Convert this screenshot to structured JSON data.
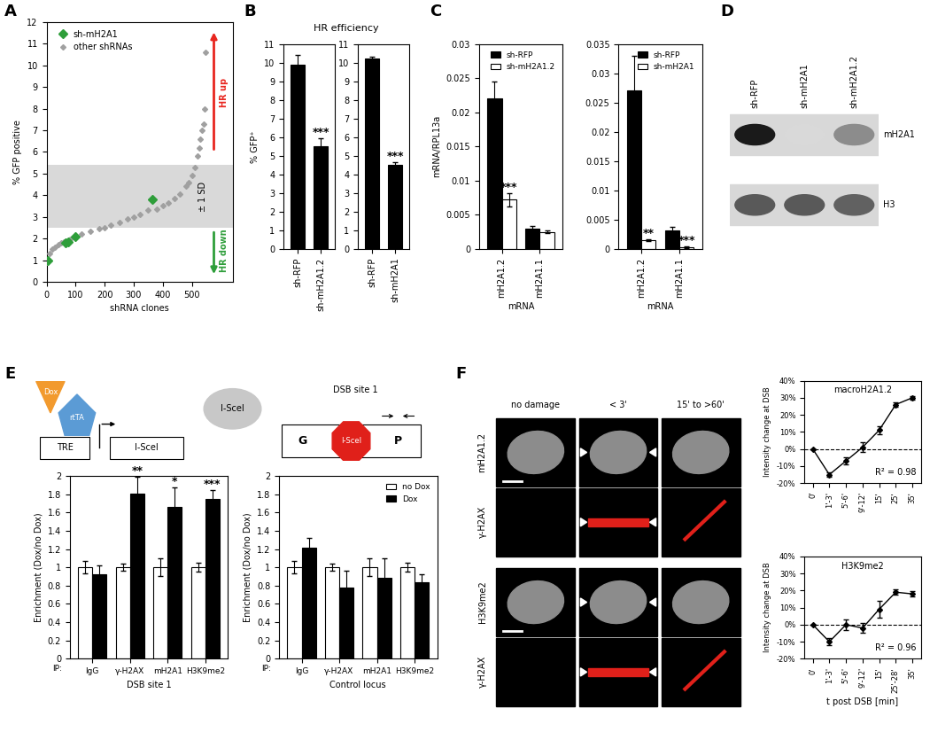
{
  "panel_labels": [
    "A",
    "B",
    "C",
    "D",
    "E",
    "F"
  ],
  "chart_data": [
    {
      "type": "scatter",
      "x_label": "shRNA clones",
      "y_label": "% GFP positive",
      "xlim": [
        0,
        640
      ],
      "xticks": [
        0,
        100,
        200,
        300,
        400,
        500
      ],
      "ylim": [
        0,
        12
      ],
      "yticks": [
        0,
        1,
        2,
        3,
        4,
        5,
        6,
        7,
        8,
        9,
        10,
        11,
        12
      ],
      "legend": "upper left",
      "series": [
        {
          "name": "sh-mH2A1",
          "color": "#2e9e3a",
          "marker": "diamond",
          "x": [
            5,
            65,
            75,
            100,
            365
          ],
          "values": [
            1.0,
            1.8,
            1.85,
            2.1,
            3.8
          ]
        },
        {
          "name": "other shRNAs",
          "color": "#a0a0a0",
          "marker": "diamond",
          "x": [
            0,
            10,
            20,
            30,
            40,
            50,
            60,
            80,
            100,
            120,
            150,
            180,
            200,
            220,
            250,
            280,
            300,
            320,
            350,
            380,
            400,
            420,
            440,
            460,
            480,
            490,
            500,
            510,
            520,
            525,
            530,
            535,
            540,
            545,
            548
          ],
          "values": [
            0.9,
            1.3,
            1.5,
            1.6,
            1.7,
            1.8,
            1.85,
            1.95,
            2.1,
            2.2,
            2.35,
            2.45,
            2.5,
            2.6,
            2.75,
            2.9,
            3.0,
            3.1,
            3.3,
            3.35,
            3.5,
            3.65,
            3.85,
            4.05,
            4.4,
            4.6,
            4.9,
            5.3,
            5.8,
            6.2,
            6.6,
            7.0,
            7.3,
            8.0,
            10.6
          ]
        }
      ],
      "sd_band": {
        "label": "± 1 SD",
        "values": [
          2.5,
          5.4
        ]
      },
      "annotations": [
        {
          "text": "HR up",
          "color": "#e8261f"
        },
        {
          "text": "HR down",
          "color": "#2e9e3a"
        }
      ]
    },
    {
      "type": "bar",
      "title": "HR efficiency",
      "y_label": "% GFP⁺",
      "categories": [
        "sh-RFP",
        "sh-mH2A1.2"
      ],
      "values": [
        9.9,
        5.5
      ],
      "errors": [
        0.5,
        0.45
      ],
      "significance": [
        null,
        "***"
      ],
      "color": "#000000",
      "ylim": [
        0,
        11
      ],
      "yticks": [
        0,
        1,
        2,
        3,
        4,
        5,
        6,
        7,
        8,
        9,
        10,
        11
      ]
    },
    {
      "type": "bar",
      "categories": [
        "sh-RFP",
        "sh-mH2A1"
      ],
      "values": [
        10.2,
        4.5
      ],
      "errors": [
        0.1,
        0.15
      ],
      "significance": [
        null,
        "***"
      ],
      "color": "#000000",
      "ylim": [
        0,
        11
      ],
      "yticks": [
        0,
        1,
        2,
        3,
        4,
        5,
        6,
        7,
        8,
        9,
        10,
        11
      ]
    },
    {
      "type": "bar",
      "y_label": "mRNA/RPL13a",
      "x_label": "mRNA",
      "categories": [
        "mH2A1.2",
        "mH2A1.1"
      ],
      "legend": "upper right",
      "ylim": [
        0,
        0.03
      ],
      "yticks": [
        0,
        0.005,
        0.01,
        0.015,
        0.02,
        0.025,
        0.03
      ],
      "series": [
        {
          "name": "sh-RFP",
          "color": "#000000",
          "values": [
            0.022,
            0.0029
          ],
          "errors": [
            0.0025,
            0.0004
          ]
        },
        {
          "name": "sh-mH2A1.2",
          "color": "#ffffff",
          "values": [
            0.0072,
            0.0025
          ],
          "errors": [
            0.001,
            0.0002
          ],
          "significance": [
            "***",
            null
          ]
        }
      ]
    },
    {
      "type": "bar",
      "x_label": "mRNA",
      "categories": [
        "mH2A1.2",
        "mH2A1.1"
      ],
      "legend": "upper right",
      "ylim": [
        0,
        0.035
      ],
      "yticks": [
        0,
        0.005,
        0.01,
        0.015,
        0.02,
        0.025,
        0.03,
        0.035
      ],
      "series": [
        {
          "name": "sh-RFP",
          "color": "#000000",
          "values": [
            0.027,
            0.0032
          ],
          "errors": [
            0.006,
            0.0005
          ]
        },
        {
          "name": "sh-mH2A1",
          "color": "#ffffff",
          "values": [
            0.0015,
            0.0003
          ],
          "errors": [
            0.0002,
            0.0001
          ],
          "significance": [
            "**",
            "***"
          ]
        }
      ]
    },
    {
      "type": "bar",
      "y_label": "Enrichment (Dox/no Dox)",
      "x_label": "DSB site 1",
      "category_axis_title": "IP:",
      "categories": [
        "IgG",
        "γ-H2AX",
        "mH2A1",
        "H3K9me2"
      ],
      "ylim": [
        0,
        2
      ],
      "yticks": [
        0,
        0.2,
        0.4,
        0.6,
        0.8,
        1,
        1.2,
        1.4,
        1.6,
        1.8,
        2
      ],
      "series": [
        {
          "name": "no Dox",
          "color": "#ffffff",
          "values": [
            1,
            1,
            1,
            1
          ],
          "errors": [
            0.07,
            0.04,
            0.1,
            0.05
          ]
        },
        {
          "name": "Dox",
          "color": "#000000",
          "values": [
            0.92,
            1.81,
            1.66,
            1.75
          ],
          "errors": [
            0.1,
            0.18,
            0.21,
            0.09
          ],
          "significance": [
            null,
            "**",
            "*",
            "***"
          ]
        }
      ]
    },
    {
      "type": "bar",
      "y_label": "Enrichment (Dox/no Dox)",
      "x_label": "Control locus",
      "category_axis_title": "IP:",
      "categories": [
        "IgG",
        "γ-H2AX",
        "mH2A1",
        "H3K9me2"
      ],
      "legend": "upper right",
      "ylim": [
        0,
        2
      ],
      "yticks": [
        0,
        0.2,
        0.4,
        0.6,
        0.8,
        1,
        1.2,
        1.4,
        1.6,
        1.8,
        2
      ],
      "series": [
        {
          "name": "no Dox",
          "color": "#ffffff",
          "values": [
            1,
            1,
            1,
            1
          ],
          "errors": [
            0.07,
            0.04,
            0.1,
            0.05
          ]
        },
        {
          "name": "Dox",
          "color": "#000000",
          "values": [
            1.21,
            0.78,
            0.89,
            0.84
          ],
          "errors": [
            0.11,
            0.18,
            0.21,
            0.08
          ]
        }
      ]
    },
    {
      "type": "line",
      "title": "macroH2A1.2",
      "y_label": "Intensity change at DSB",
      "categories": [
        "0'",
        "1'-3'",
        "5'-6'",
        "9'-12'",
        "15'",
        "25'",
        "35'"
      ],
      "values": [
        0,
        -15,
        -7,
        1,
        11,
        26,
        30
      ],
      "errors": [
        0,
        1.5,
        2,
        3,
        2.5,
        1.5,
        1
      ],
      "color": "#000000",
      "marker": "diamond",
      "reference_line": 0,
      "annotation": "R² = 0.98",
      "ylim": [
        -20,
        40
      ],
      "yticks": [
        {
          "value": -20,
          "label": "-20%"
        },
        {
          "value": -10,
          "label": "-10%"
        },
        {
          "value": 0,
          "label": "0%"
        },
        {
          "value": 10,
          "label": "10%"
        },
        {
          "value": 20,
          "label": "20%"
        },
        {
          "value": 30,
          "label": "30%"
        },
        {
          "value": 40,
          "label": "40%"
        }
      ]
    },
    {
      "type": "line",
      "title": "H3K9me2",
      "y_label": "Intensity change at DSB",
      "x_label": "t post DSB [min]",
      "categories": [
        "0'",
        "1'-3'",
        "5'-6'",
        "9'-12'",
        "15'",
        "25'-28'",
        "35'"
      ],
      "values": [
        0,
        -10,
        0,
        -2,
        9,
        19,
        18
      ],
      "errors": [
        0,
        2,
        3,
        3,
        5,
        1.5,
        1.5
      ],
      "color": "#000000",
      "marker": "diamond",
      "reference_line": 0,
      "annotation": "R² = 0.96",
      "ylim": [
        -20,
        40
      ],
      "yticks": [
        {
          "value": -20,
          "label": "-20%"
        },
        {
          "value": -10,
          "label": "-10%"
        },
        {
          "value": 0,
          "label": "0%"
        },
        {
          "value": 10,
          "label": "10%"
        },
        {
          "value": 20,
          "label": "20%"
        },
        {
          "value": 30,
          "label": "30%"
        },
        {
          "value": 40,
          "label": "40%"
        }
      ]
    }
  ],
  "diagrams": {
    "D": {
      "lanes": [
        "sh-RFP",
        "sh-mH2A1",
        "sh-mH2A1.2"
      ],
      "rows": [
        "mH2A1",
        "H3"
      ]
    },
    "E": {
      "inducer": "Dox",
      "activator": "rtTA",
      "promoter": "TRE",
      "gene": "I-SceI",
      "enzyme": "I-SceI",
      "site_title": "DSB site 1",
      "site_left": "G",
      "site_cut": "I-SceI",
      "site_right": "P"
    },
    "F": {
      "columns": [
        "no damage",
        "< 3'",
        "15' to >60'"
      ],
      "rows": [
        "mH2A1.2",
        "γ-H2AX",
        "H3K9me2",
        "γ-H2AX"
      ]
    }
  }
}
